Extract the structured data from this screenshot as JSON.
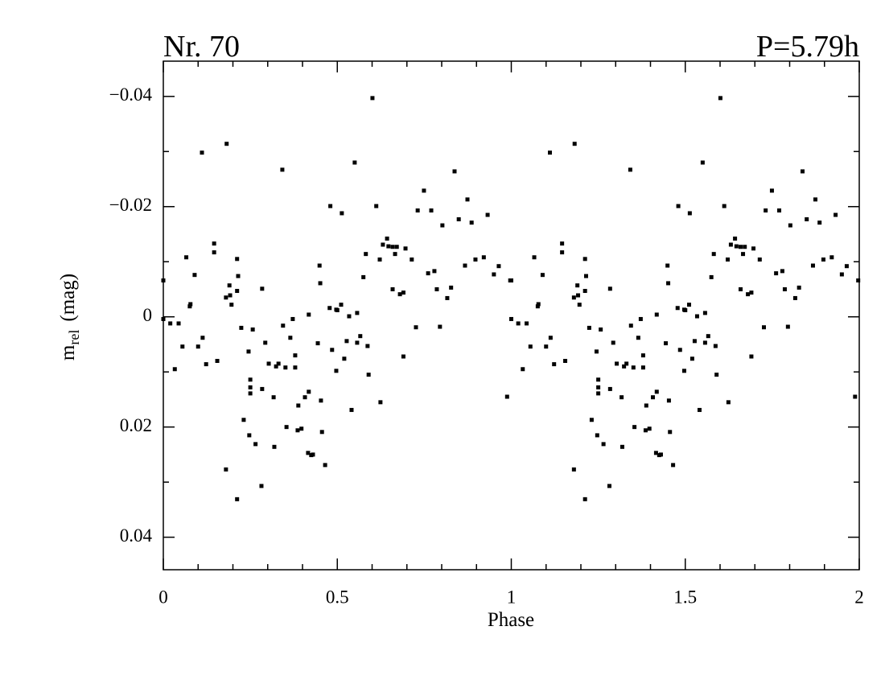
{
  "chart_data": {
    "type": "scatter",
    "title_left": "Nr. 70",
    "title_right": "P=5.79h",
    "x_label": "Phase",
    "y_label": "m",
    "y_label_sub": "rel",
    "y_label_unit": "(mag)",
    "xlim": [
      0,
      2
    ],
    "ylim": [
      0.0459,
      -0.0464
    ],
    "xticks": [
      0,
      0.5,
      1,
      1.5,
      2
    ],
    "yticks": [
      {
        "value": -0.04,
        "label": "−0.04"
      },
      {
        "value": -0.02,
        "label": "−0.02"
      },
      0,
      0.02,
      0.04
    ],
    "xticks_minor": [
      0.1,
      0.2,
      0.3,
      0.4,
      0.6,
      0.7,
      0.8,
      0.9,
      1.1,
      1.2,
      1.3,
      1.4,
      1.6,
      1.7,
      1.8,
      1.9
    ],
    "yticks_minor": [
      -0.03,
      -0.01,
      0.01,
      0.03
    ],
    "color": "#000000",
    "x": [
      0,
      0,
      0.02,
      0.033,
      0.044,
      0.055,
      0.066,
      0.076,
      0.078,
      0.09,
      0.1,
      0.111,
      0.113,
      0.123,
      0.146,
      0.146,
      0.155,
      0.18,
      0.182,
      0.18,
      0.19,
      0.192,
      0.196,
      0.212,
      0.212,
      0.215,
      0.212,
      0.224,
      0.231,
      0.245,
      0.247,
      0.25,
      0.25,
      0.25,
      0.257,
      0.265,
      0.282,
      0.284,
      0.284,
      0.293,
      0.303,
      0.317,
      0.319,
      0.324,
      0.331,
      0.342,
      0.344,
      0.351,
      0.354,
      0.365,
      0.372,
      0.379,
      0.379,
      0.386,
      0.388,
      0.397,
      0.407,
      0.416,
      0.418,
      0.418,
      0.425,
      0.43,
      0.444,
      0.451,
      0.449,
      0.453,
      0.456,
      0.465,
      0.478,
      0.48,
      0.485,
      0.497,
      0.497,
      0.5,
      0.511,
      0.513,
      0.52,
      0.527,
      0.534,
      0.541,
      0.55,
      0.557,
      0.557,
      0.566,
      0.575,
      0.582,
      0.587,
      0.59,
      0.601,
      0.612,
      0.622,
      0.624,
      0.631,
      0.643,
      0.647,
      0.659,
      0.659,
      0.666,
      0.671,
      0.68,
      0.69,
      0.69,
      0.696,
      0.714,
      0.726,
      0.731,
      0.749,
      0.761,
      0.77,
      0.779,
      0.786,
      0.795,
      0.802,
      0.816,
      0.827,
      0.837,
      0.849,
      0.867,
      0.874,
      0.886,
      0.897,
      0.921,
      0.932,
      0.95,
      0.964,
      0.988,
      0.997,
      1,
      1,
      1.02,
      1.033,
      1.044,
      1.055,
      1.066,
      1.076,
      1.078,
      1.09,
      1.1,
      1.111,
      1.113,
      1.123,
      1.146,
      1.146,
      1.155,
      1.18,
      1.182,
      1.18,
      1.19,
      1.192,
      1.196,
      1.212,
      1.212,
      1.215,
      1.212,
      1.224,
      1.231,
      1.245,
      1.247,
      1.25,
      1.25,
      1.25,
      1.257,
      1.265,
      1.282,
      1.284,
      1.284,
      1.293,
      1.303,
      1.317,
      1.319,
      1.324,
      1.331,
      1.342,
      1.344,
      1.351,
      1.354,
      1.365,
      1.372,
      1.379,
      1.379,
      1.386,
      1.388,
      1.397,
      1.407,
      1.416,
      1.418,
      1.418,
      1.425,
      1.43,
      1.444,
      1.451,
      1.449,
      1.453,
      1.456,
      1.465,
      1.478,
      1.48,
      1.485,
      1.497,
      1.497,
      1.5,
      1.511,
      1.513,
      1.52,
      1.527,
      1.534,
      1.541,
      1.55,
      1.557,
      1.557,
      1.566,
      1.575,
      1.582,
      1.587,
      1.59,
      1.601,
      1.612,
      1.622,
      1.624,
      1.631,
      1.643,
      1.647,
      1.659,
      1.659,
      1.666,
      1.671,
      1.68,
      1.69,
      1.69,
      1.696,
      1.714,
      1.726,
      1.731,
      1.749,
      1.761,
      1.77,
      1.779,
      1.786,
      1.795,
      1.802,
      1.816,
      1.827,
      1.837,
      1.849,
      1.867,
      1.874,
      1.886,
      1.897,
      1.921,
      1.932,
      1.95,
      1.964,
      1.988,
      1.997
    ],
    "values": [
      -0.0066,
      0.0004,
      0.0012,
      0.0095,
      0.0012,
      0.0054,
      -0.0108,
      -0.0019,
      -0.0023,
      -0.0076,
      0.0054,
      -0.0298,
      0.0038,
      0.0086,
      -0.0133,
      -0.0117,
      0.008,
      0.0277,
      -0.0314,
      -0.0035,
      -0.0057,
      -0.0039,
      -0.0022,
      -0.0047,
      -0.0105,
      -0.0074,
      0.0331,
      0.002,
      0.0187,
      0.0063,
      0.0215,
      0.0114,
      0.0128,
      0.0139,
      0.0023,
      0.0231,
      0.0307,
      -0.0051,
      0.0131,
      0.0047,
      0.0085,
      0.0146,
      0.0236,
      0.009,
      0.0085,
      -0.0267,
      0.0016,
      0.0092,
      0.02,
      0.0038,
      0.0004,
      0.007,
      0.0092,
      0.0206,
      0.0161,
      0.0203,
      0.0146,
      0.0247,
      -0.0004,
      0.0136,
      0.0251,
      0.025,
      0.0048,
      -0.0061,
      -0.0093,
      0.0152,
      0.0209,
      0.0269,
      -0.0016,
      -0.0201,
      0.006,
      0.0098,
      -0.0013,
      -0.0012,
      -0.0022,
      -0.0188,
      0.0076,
      0.0044,
      -0.0001,
      0.0169,
      -0.028,
      -0.0007,
      0.0047,
      0.0035,
      -0.0072,
      -0.0114,
      0.0053,
      0.0105,
      -0.0397,
      -0.0201,
      -0.0104,
      0.0155,
      -0.0131,
      -0.0142,
      -0.0128,
      -0.005,
      -0.0127,
      -0.0114,
      -0.0127,
      -0.0041,
      0.0072,
      -0.0044,
      -0.0124,
      -0.0104,
      0.0019,
      -0.0193,
      -0.0229,
      -0.0079,
      -0.0193,
      -0.0083,
      -0.005,
      0.0018,
      -0.0166,
      -0.0034,
      -0.0053,
      -0.0264,
      -0.0177,
      -0.0093,
      -0.0213,
      -0.0171,
      -0.0104,
      -0.0108,
      -0.0185,
      -0.0077,
      -0.0092,
      0.0145,
      -0.0066,
      -0.0066,
      0.0004,
      0.0012,
      0.0095,
      0.0012,
      0.0054,
      -0.0108,
      -0.0019,
      -0.0023,
      -0.0076,
      0.0054,
      -0.0298,
      0.0038,
      0.0086,
      -0.0133,
      -0.0117,
      0.008,
      0.0277,
      -0.0314,
      -0.0035,
      -0.0057,
      -0.0039,
      -0.0022,
      -0.0047,
      -0.0105,
      -0.0074,
      0.0331,
      0.002,
      0.0187,
      0.0063,
      0.0215,
      0.0114,
      0.0128,
      0.0139,
      0.0023,
      0.0231,
      0.0307,
      -0.0051,
      0.0131,
      0.0047,
      0.0085,
      0.0146,
      0.0236,
      0.009,
      0.0085,
      -0.0267,
      0.0016,
      0.0092,
      0.02,
      0.0038,
      0.0004,
      0.007,
      0.0092,
      0.0206,
      0.0161,
      0.0203,
      0.0146,
      0.0247,
      -0.0004,
      0.0136,
      0.0251,
      0.025,
      0.0048,
      -0.0061,
      -0.0093,
      0.0152,
      0.0209,
      0.0269,
      -0.0016,
      -0.0201,
      0.006,
      0.0098,
      -0.0013,
      -0.0012,
      -0.0022,
      -0.0188,
      0.0076,
      0.0044,
      -0.0001,
      0.0169,
      -0.028,
      -0.0007,
      0.0047,
      0.0035,
      -0.0072,
      -0.0114,
      0.0053,
      0.0105,
      -0.0397,
      -0.0201,
      -0.0104,
      0.0155,
      -0.0131,
      -0.0142,
      -0.0128,
      -0.005,
      -0.0127,
      -0.0114,
      -0.0127,
      -0.0041,
      0.0072,
      -0.0044,
      -0.0124,
      -0.0104,
      0.0019,
      -0.0193,
      -0.0229,
      -0.0079,
      -0.0193,
      -0.0083,
      -0.005,
      0.0018,
      -0.0166,
      -0.0034,
      -0.0053,
      -0.0264,
      -0.0177,
      -0.0093,
      -0.0213,
      -0.0171,
      -0.0104,
      -0.0108,
      -0.0185,
      -0.0077,
      -0.0092,
      0.0145,
      -0.0066
    ]
  }
}
